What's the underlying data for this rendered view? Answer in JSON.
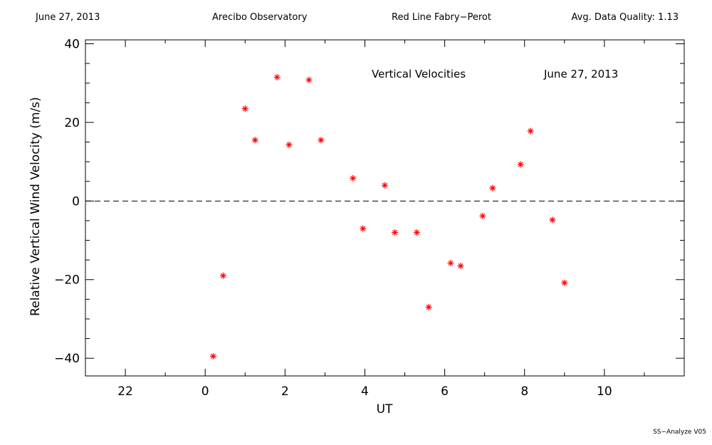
{
  "header": {
    "date": "June 27, 2013",
    "observatory": "Arecibo Observatory",
    "instrument": "Red Line Fabry−Perot",
    "quality": "Avg. Data Quality: 1.13"
  },
  "footer": {
    "version": "SS−Analyze V05"
  },
  "chart_data": {
    "type": "scatter",
    "title": "Vertical Velocities",
    "date_label": "June 27, 2013",
    "xlabel": "UT",
    "ylabel": "Relative Vertical Wind Velocity (m/s)",
    "xlim": [
      21,
      36
    ],
    "ylim": [
      -44.5,
      41
    ],
    "x_tick_values": [
      22,
      24,
      26,
      28,
      30,
      32,
      34
    ],
    "x_tick_labels": [
      "22",
      "0",
      "2",
      "4",
      "6",
      "8",
      "10"
    ],
    "y_tick_values": [
      -40,
      -20,
      0,
      20,
      40
    ],
    "y_tick_labels": [
      "−40",
      "−20",
      "0",
      "20",
      "40"
    ],
    "reference_line": {
      "y": 0,
      "style": "dashed"
    },
    "marker": "asterisk",
    "marker_color": "#ff0000",
    "points": [
      {
        "x": 24.2,
        "y": -39.5
      },
      {
        "x": 24.45,
        "y": -19
      },
      {
        "x": 25.0,
        "y": 23.5
      },
      {
        "x": 25.25,
        "y": 15.5
      },
      {
        "x": 25.8,
        "y": 31.5
      },
      {
        "x": 26.1,
        "y": 14.3
      },
      {
        "x": 26.6,
        "y": 30.8
      },
      {
        "x": 26.9,
        "y": 15.5
      },
      {
        "x": 27.7,
        "y": 5.8
      },
      {
        "x": 27.95,
        "y": -7
      },
      {
        "x": 28.5,
        "y": 4
      },
      {
        "x": 28.75,
        "y": -8
      },
      {
        "x": 29.3,
        "y": -8
      },
      {
        "x": 29.6,
        "y": -27
      },
      {
        "x": 30.15,
        "y": -15.8
      },
      {
        "x": 30.4,
        "y": -16.5
      },
      {
        "x": 30.95,
        "y": -3.8
      },
      {
        "x": 31.2,
        "y": 3.3
      },
      {
        "x": 31.9,
        "y": 9.3
      },
      {
        "x": 32.15,
        "y": 17.8
      },
      {
        "x": 32.7,
        "y": -4.8
      },
      {
        "x": 33.0,
        "y": -20.8
      }
    ]
  }
}
